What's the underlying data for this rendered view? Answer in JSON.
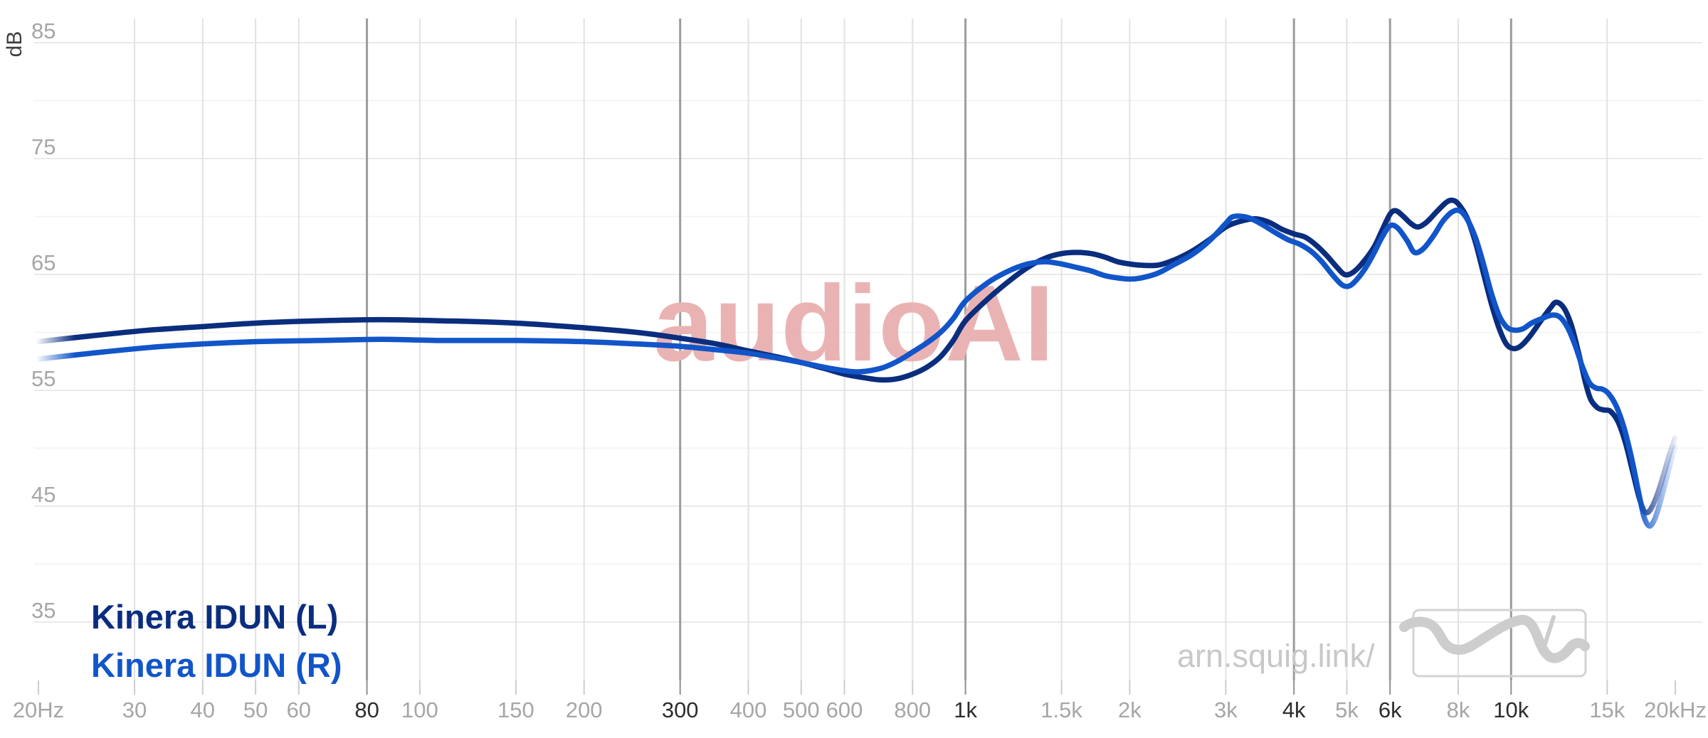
{
  "branding": {
    "watermark": "audioAI",
    "watermark_color": "#eab3b3",
    "site_url": "arn.squig.link/",
    "logo": "squiggle-fr-curve-in-box"
  },
  "legend": [
    {
      "label": "Kinera IDUN (L)",
      "color": "#0a2d7e"
    },
    {
      "label": "Kinera IDUN (R)",
      "color": "#1155c9"
    }
  ],
  "colors": {
    "grid_vertical": "#e2e2e2",
    "grid_vertical_emphasized": "#9c9c9c",
    "grid_horizontal_major": "#eaeaea",
    "grid_horizontal_minor": "#f4f4f4",
    "tick_normal": "#cccccc",
    "tick_emphasized": "#8f8f8f",
    "label_normal": "#a6a6a6",
    "label_emphasized": "#2d2d2d",
    "logo_gray": "#cdcdcd",
    "logo_box_border": "#d3d3d3"
  },
  "chart_data": {
    "type": "line",
    "x_scale": "log",
    "ylabel": "dB",
    "xlim": [
      20,
      20000
    ],
    "ylim": [
      33,
      87
    ],
    "y_major_ticks": [
      85,
      75,
      65,
      55,
      45,
      35
    ],
    "y_minor_ticks": [
      80,
      70,
      60,
      50,
      40
    ],
    "x_ticks": [
      {
        "f": 20,
        "label": "20Hz",
        "emphasized": false,
        "gridline": false
      },
      {
        "f": 30,
        "label": "30",
        "emphasized": false,
        "gridline": true
      },
      {
        "f": 40,
        "label": "40",
        "emphasized": false,
        "gridline": true
      },
      {
        "f": 50,
        "label": "50",
        "emphasized": false,
        "gridline": true
      },
      {
        "f": 60,
        "label": "60",
        "emphasized": false,
        "gridline": true
      },
      {
        "f": 80,
        "label": "80",
        "emphasized": true,
        "gridline": true
      },
      {
        "f": 100,
        "label": "100",
        "emphasized": false,
        "gridline": true
      },
      {
        "f": 150,
        "label": "150",
        "emphasized": false,
        "gridline": true
      },
      {
        "f": 200,
        "label": "200",
        "emphasized": false,
        "gridline": true
      },
      {
        "f": 300,
        "label": "300",
        "emphasized": true,
        "gridline": true
      },
      {
        "f": 400,
        "label": "400",
        "emphasized": false,
        "gridline": true
      },
      {
        "f": 500,
        "label": "500",
        "emphasized": false,
        "gridline": true
      },
      {
        "f": 600,
        "label": "600",
        "emphasized": false,
        "gridline": true
      },
      {
        "f": 800,
        "label": "800",
        "emphasized": false,
        "gridline": true
      },
      {
        "f": 1000,
        "label": "1k",
        "emphasized": true,
        "gridline": true
      },
      {
        "f": 1500,
        "label": "1.5k",
        "emphasized": false,
        "gridline": true
      },
      {
        "f": 2000,
        "label": "2k",
        "emphasized": false,
        "gridline": true
      },
      {
        "f": 3000,
        "label": "3k",
        "emphasized": false,
        "gridline": true
      },
      {
        "f": 4000,
        "label": "4k",
        "emphasized": true,
        "gridline": true
      },
      {
        "f": 5000,
        "label": "5k",
        "emphasized": false,
        "gridline": true
      },
      {
        "f": 6000,
        "label": "6k",
        "emphasized": true,
        "gridline": true
      },
      {
        "f": 8000,
        "label": "8k",
        "emphasized": false,
        "gridline": true
      },
      {
        "f": 10000,
        "label": "10k",
        "emphasized": true,
        "gridline": true
      },
      {
        "f": 15000,
        "label": "15k",
        "emphasized": false,
        "gridline": true
      },
      {
        "f": 20000,
        "label": "20kHz",
        "emphasized": false,
        "gridline": false
      }
    ],
    "series": [
      {
        "name": "Kinera IDUN (L)",
        "color": "#0a2d7e",
        "points": [
          [
            20,
            59.2
          ],
          [
            25,
            59.7
          ],
          [
            32,
            60.2
          ],
          [
            40,
            60.5
          ],
          [
            50,
            60.8
          ],
          [
            65,
            61.0
          ],
          [
            85,
            61.1
          ],
          [
            110,
            61.0
          ],
          [
            150,
            60.8
          ],
          [
            200,
            60.4
          ],
          [
            250,
            60.0
          ],
          [
            300,
            59.5
          ],
          [
            350,
            59.0
          ],
          [
            400,
            58.4
          ],
          [
            450,
            57.9
          ],
          [
            500,
            57.4
          ],
          [
            550,
            56.9
          ],
          [
            600,
            56.4
          ],
          [
            650,
            56.1
          ],
          [
            700,
            55.9
          ],
          [
            750,
            56.0
          ],
          [
            800,
            56.4
          ],
          [
            850,
            57.0
          ],
          [
            900,
            57.9
          ],
          [
            950,
            59.3
          ],
          [
            1000,
            61.0
          ],
          [
            1100,
            62.9
          ],
          [
            1200,
            64.4
          ],
          [
            1300,
            65.6
          ],
          [
            1400,
            66.4
          ],
          [
            1500,
            66.8
          ],
          [
            1600,
            66.9
          ],
          [
            1700,
            66.8
          ],
          [
            1800,
            66.5
          ],
          [
            1900,
            66.1
          ],
          [
            2000,
            65.9
          ],
          [
            2100,
            65.8
          ],
          [
            2250,
            65.8
          ],
          [
            2400,
            66.2
          ],
          [
            2600,
            67.0
          ],
          [
            2800,
            68.0
          ],
          [
            3000,
            69.1
          ],
          [
            3200,
            69.6
          ],
          [
            3400,
            69.8
          ],
          [
            3600,
            69.5
          ],
          [
            3800,
            68.9
          ],
          [
            4000,
            68.5
          ],
          [
            4200,
            68.2
          ],
          [
            4400,
            67.5
          ],
          [
            4600,
            66.6
          ],
          [
            4800,
            65.6
          ],
          [
            4950,
            65.0
          ],
          [
            5100,
            65.1
          ],
          [
            5300,
            65.8
          ],
          [
            5600,
            67.3
          ],
          [
            5800,
            68.8
          ],
          [
            6000,
            70.2
          ],
          [
            6150,
            70.5
          ],
          [
            6350,
            70.0
          ],
          [
            6550,
            69.4
          ],
          [
            6750,
            69.1
          ],
          [
            7000,
            69.5
          ],
          [
            7300,
            70.4
          ],
          [
            7600,
            71.2
          ],
          [
            7800,
            71.4
          ],
          [
            8000,
            71.1
          ],
          [
            8300,
            69.9
          ],
          [
            8600,
            67.8
          ],
          [
            8900,
            65.1
          ],
          [
            9200,
            62.5
          ],
          [
            9500,
            60.4
          ],
          [
            9800,
            59.0
          ],
          [
            10100,
            58.6
          ],
          [
            10400,
            58.8
          ],
          [
            10800,
            59.6
          ],
          [
            11300,
            60.9
          ],
          [
            11800,
            62.1
          ],
          [
            12100,
            62.6
          ],
          [
            12500,
            62.1
          ],
          [
            12900,
            60.6
          ],
          [
            13300,
            58.2
          ],
          [
            13700,
            55.6
          ],
          [
            14000,
            54.2
          ],
          [
            14400,
            53.5
          ],
          [
            14800,
            53.3
          ],
          [
            15200,
            53.2
          ],
          [
            15700,
            52.3
          ],
          [
            16200,
            50.5
          ],
          [
            16700,
            48.0
          ],
          [
            17200,
            45.6
          ],
          [
            17600,
            44.5
          ],
          [
            18000,
            44.7
          ],
          [
            18500,
            45.9
          ],
          [
            19000,
            47.6
          ],
          [
            19500,
            49.4
          ],
          [
            20000,
            50.9
          ]
        ]
      },
      {
        "name": "Kinera IDUN (R)",
        "color": "#1155c9",
        "points": [
          [
            20,
            57.7
          ],
          [
            25,
            58.2
          ],
          [
            32,
            58.7
          ],
          [
            40,
            59.0
          ],
          [
            50,
            59.2
          ],
          [
            65,
            59.3
          ],
          [
            85,
            59.4
          ],
          [
            110,
            59.3
          ],
          [
            150,
            59.3
          ],
          [
            200,
            59.2
          ],
          [
            250,
            59.0
          ],
          [
            300,
            58.8
          ],
          [
            350,
            58.5
          ],
          [
            400,
            58.2
          ],
          [
            450,
            57.8
          ],
          [
            500,
            57.4
          ],
          [
            550,
            57.0
          ],
          [
            600,
            56.7
          ],
          [
            640,
            56.6
          ],
          [
            700,
            56.9
          ],
          [
            750,
            57.5
          ],
          [
            800,
            58.3
          ],
          [
            850,
            59.1
          ],
          [
            900,
            60.0
          ],
          [
            950,
            61.2
          ],
          [
            1000,
            62.7
          ],
          [
            1100,
            64.3
          ],
          [
            1200,
            65.3
          ],
          [
            1300,
            65.9
          ],
          [
            1400,
            66.1
          ],
          [
            1500,
            65.9
          ],
          [
            1600,
            65.6
          ],
          [
            1700,
            65.3
          ],
          [
            1800,
            64.9
          ],
          [
            1900,
            64.7
          ],
          [
            2000,
            64.6
          ],
          [
            2100,
            64.7
          ],
          [
            2250,
            65.1
          ],
          [
            2400,
            65.8
          ],
          [
            2600,
            66.7
          ],
          [
            2800,
            67.9
          ],
          [
            3000,
            69.4
          ],
          [
            3100,
            70.0
          ],
          [
            3300,
            69.9
          ],
          [
            3500,
            69.3
          ],
          [
            3700,
            68.6
          ],
          [
            3900,
            68.0
          ],
          [
            4100,
            67.6
          ],
          [
            4300,
            67.0
          ],
          [
            4500,
            66.1
          ],
          [
            4700,
            65.0
          ],
          [
            4900,
            64.1
          ],
          [
            5050,
            64.0
          ],
          [
            5200,
            64.5
          ],
          [
            5400,
            65.5
          ],
          [
            5600,
            66.8
          ],
          [
            5800,
            68.2
          ],
          [
            6000,
            69.2
          ],
          [
            6200,
            69.0
          ],
          [
            6450,
            67.9
          ],
          [
            6650,
            66.9
          ],
          [
            6900,
            67.2
          ],
          [
            7200,
            68.3
          ],
          [
            7500,
            69.6
          ],
          [
            7800,
            70.4
          ],
          [
            8050,
            70.5
          ],
          [
            8300,
            69.8
          ],
          [
            8600,
            68.2
          ],
          [
            8900,
            65.9
          ],
          [
            9200,
            63.4
          ],
          [
            9500,
            61.5
          ],
          [
            9800,
            60.5
          ],
          [
            10100,
            60.2
          ],
          [
            10500,
            60.3
          ],
          [
            10900,
            60.8
          ],
          [
            11400,
            61.2
          ],
          [
            11900,
            61.5
          ],
          [
            12300,
            61.3
          ],
          [
            12700,
            60.4
          ],
          [
            13100,
            58.9
          ],
          [
            13500,
            57.1
          ],
          [
            13900,
            55.7
          ],
          [
            14300,
            55.2
          ],
          [
            14700,
            55.1
          ],
          [
            15100,
            54.7
          ],
          [
            15600,
            53.6
          ],
          [
            16100,
            51.8
          ],
          [
            16600,
            49.3
          ],
          [
            17100,
            46.4
          ],
          [
            17500,
            44.2
          ],
          [
            17900,
            43.3
          ],
          [
            18300,
            43.8
          ],
          [
            18700,
            45.1
          ],
          [
            19200,
            47.1
          ],
          [
            19700,
            49.1
          ],
          [
            20000,
            50.1
          ]
        ]
      }
    ]
  }
}
